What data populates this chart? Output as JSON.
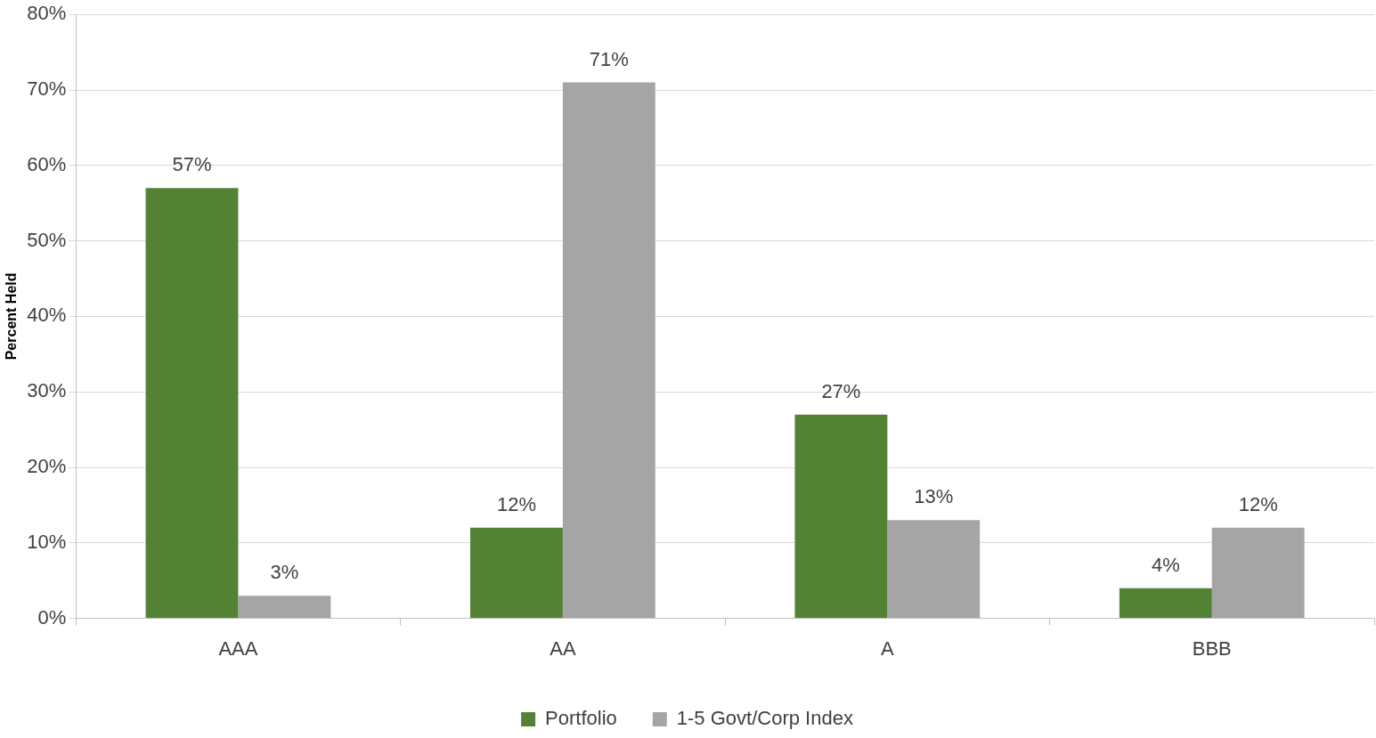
{
  "chart_data": {
    "type": "bar",
    "ylabel": "Percent Held",
    "categories": [
      "AAA",
      "AA",
      "A",
      "BBB"
    ],
    "series": [
      {
        "name": "Portfolio",
        "color": "#548235",
        "values": [
          57,
          12,
          27,
          4
        ],
        "value_labels": [
          "57%",
          "12%",
          "27%",
          "4%"
        ]
      },
      {
        "name": "1-5 Govt/Corp Index",
        "color": "#a5a5a5",
        "values": [
          3,
          71,
          13,
          12
        ],
        "value_labels": [
          "3%",
          "71%",
          "13%",
          "12%"
        ]
      }
    ],
    "ylim": [
      0,
      80
    ],
    "yticks": [
      {
        "value": 0,
        "label": "0%"
      },
      {
        "value": 10,
        "label": "10%"
      },
      {
        "value": 20,
        "label": "20%"
      },
      {
        "value": 30,
        "label": "30%"
      },
      {
        "value": 40,
        "label": "40%"
      },
      {
        "value": 50,
        "label": "50%"
      },
      {
        "value": 60,
        "label": "60%"
      },
      {
        "value": 70,
        "label": "70%"
      },
      {
        "value": 80,
        "label": "80%"
      }
    ],
    "grid": "y",
    "legend": "bottom"
  }
}
